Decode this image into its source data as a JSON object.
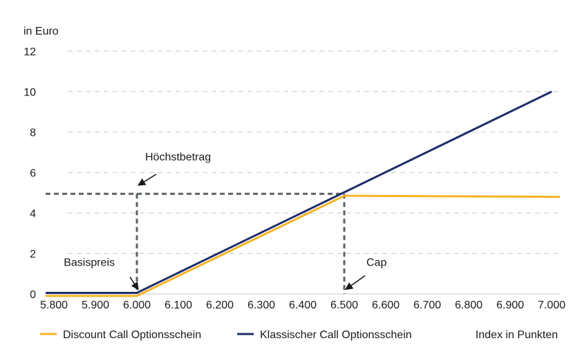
{
  "chart_data": {
    "type": "line",
    "ylabel": "in Euro",
    "xlabel": "Index in Punkten",
    "ylim": [
      0,
      12
    ],
    "xlim": [
      5780,
      7020
    ],
    "yticks": [
      0,
      2,
      4,
      6,
      8,
      10,
      12
    ],
    "ytick_labels": [
      "0",
      "2",
      "4",
      "6",
      "8",
      "10",
      "12"
    ],
    "xticks": [
      5800,
      5900,
      6000,
      6100,
      6200,
      6300,
      6400,
      6500,
      6600,
      6700,
      6800,
      6900,
      7000
    ],
    "xtick_labels": [
      "5.800",
      "5.900",
      "6.000",
      "6.100",
      "6.200",
      "6.300",
      "6.400",
      "6.500",
      "6.600",
      "6.700",
      "6.800",
      "6.900",
      "7.000"
    ],
    "grid": "horizontal-dashed",
    "legend_position": "bottom",
    "series": [
      {
        "name": "Discount Call Optionsschein",
        "color": "#f5b323",
        "points": [
          [
            5780,
            -0.1
          ],
          [
            6000,
            -0.1
          ],
          [
            6500,
            4.85
          ],
          [
            7020,
            4.8
          ]
        ]
      },
      {
        "name": "Klassischer Call Optionsschein",
        "color": "#1f2d6b",
        "points": [
          [
            5780,
            0.05
          ],
          [
            6000,
            0.05
          ],
          [
            7000,
            10.0
          ]
        ]
      }
    ],
    "reference_lines": {
      "color": "#5a6360",
      "horizontal_value": 4.95,
      "vertical_basis": 6000,
      "vertical_cap": 6500
    },
    "annotations": [
      {
        "text": "Höchstbetrag",
        "target_x": 6000,
        "target_y": 5.3
      },
      {
        "text": "Basispreis",
        "target_x": 6000,
        "target_y": 0.15
      },
      {
        "text": "Cap",
        "target_x": 6500,
        "target_y": 0.15
      }
    ]
  }
}
